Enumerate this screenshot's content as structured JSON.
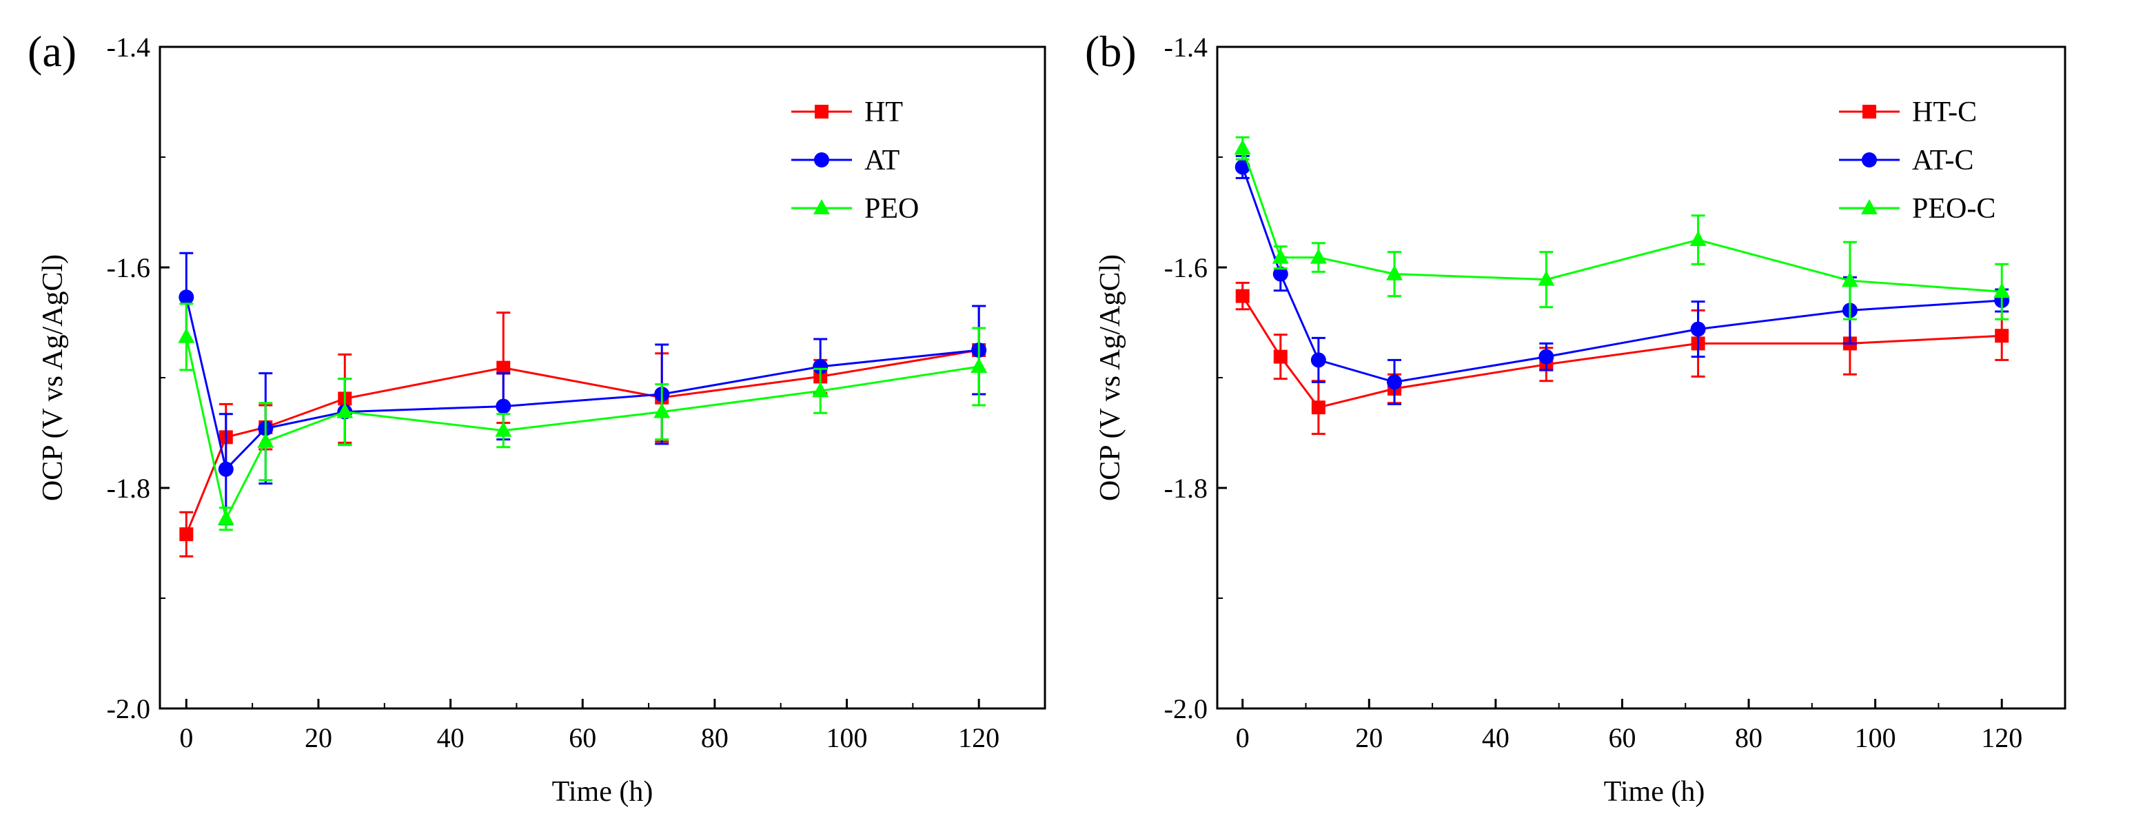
{
  "chart_data": [
    {
      "type": "line",
      "panel_label": "(a)",
      "title": "",
      "xlabel": "Time (h)",
      "ylabel": "OCP (V vs Ag/AgCl)",
      "xlim": [
        -4,
        130
      ],
      "ylim": [
        -2.0,
        -1.4
      ],
      "x_ticks": [
        0,
        20,
        40,
        60,
        80,
        100,
        120
      ],
      "x_tick_labels": [
        "0",
        "20",
        "40",
        "60",
        "80",
        "100",
        "120"
      ],
      "y_ticks": [
        -2.0,
        -1.8,
        -1.6,
        -1.4
      ],
      "y_tick_labels": [
        "-2.0",
        "-1.8",
        "-1.6",
        "-1.4"
      ],
      "legend_position": "top-right",
      "x": [
        0,
        6,
        12,
        24,
        48,
        72,
        96,
        120
      ],
      "series": [
        {
          "name": "HT",
          "color": "#ff0000",
          "marker": "square",
          "values": [
            -1.842,
            -1.754,
            -1.745,
            -1.719,
            -1.691,
            -1.718,
            -1.699,
            -1.675
          ],
          "errors": [
            0.02,
            0.03,
            0.02,
            0.04,
            0.05,
            0.04,
            0.015,
            0.04
          ]
        },
        {
          "name": "AT",
          "color": "#0000ff",
          "marker": "circle",
          "values": [
            -1.627,
            -1.783,
            -1.746,
            -1.731,
            -1.726,
            -1.715,
            -1.69,
            -1.675
          ],
          "errors": [
            0.04,
            0.05,
            0.05,
            0.03,
            0.03,
            0.045,
            0.025,
            0.04
          ]
        },
        {
          "name": "PEO",
          "color": "#00ff00",
          "marker": "triangle",
          "values": [
            -1.663,
            -1.828,
            -1.758,
            -1.731,
            -1.748,
            -1.731,
            -1.712,
            -1.69
          ],
          "errors": [
            0.03,
            0.01,
            0.035,
            0.03,
            0.015,
            0.025,
            0.02,
            0.035
          ]
        }
      ]
    },
    {
      "type": "line",
      "panel_label": "(b)",
      "title": "",
      "xlabel": "Time (h)",
      "ylabel": "OCP (V vs Ag/AgCl)",
      "xlim": [
        -4,
        130
      ],
      "ylim": [
        -2.0,
        -1.4
      ],
      "x_ticks": [
        0,
        20,
        40,
        60,
        80,
        100,
        120
      ],
      "x_tick_labels": [
        "0",
        "20",
        "40",
        "60",
        "80",
        "100",
        "120"
      ],
      "y_ticks": [
        -2.0,
        -1.8,
        -1.6,
        -1.4
      ],
      "y_tick_labels": [
        "-2.0",
        "-1.8",
        "-1.6",
        "-1.4"
      ],
      "legend_position": "top-right",
      "x": [
        0,
        6,
        12,
        24,
        48,
        72,
        96,
        120
      ],
      "series": [
        {
          "name": "HT-C",
          "color": "#ff0000",
          "marker": "square",
          "values": [
            -1.626,
            -1.681,
            -1.727,
            -1.71,
            -1.688,
            -1.669,
            -1.669,
            -1.662
          ],
          "errors": [
            0.012,
            0.02,
            0.024,
            0.013,
            0.015,
            0.03,
            0.028,
            0.022
          ]
        },
        {
          "name": "AT-C",
          "color": "#0000ff",
          "marker": "circle",
          "values": [
            -1.509,
            -1.606,
            -1.684,
            -1.704,
            -1.681,
            -1.656,
            -1.639,
            -1.63
          ],
          "errors": [
            0.01,
            0.015,
            0.02,
            0.02,
            0.012,
            0.025,
            0.03,
            0.01
          ]
        },
        {
          "name": "PEO-C",
          "color": "#00ff00",
          "marker": "triangle",
          "values": [
            -1.492,
            -1.591,
            -1.591,
            -1.606,
            -1.611,
            -1.575,
            -1.612,
            -1.622
          ],
          "errors": [
            0.01,
            0.01,
            0.013,
            0.02,
            0.025,
            0.022,
            0.035,
            0.025
          ]
        }
      ]
    }
  ]
}
